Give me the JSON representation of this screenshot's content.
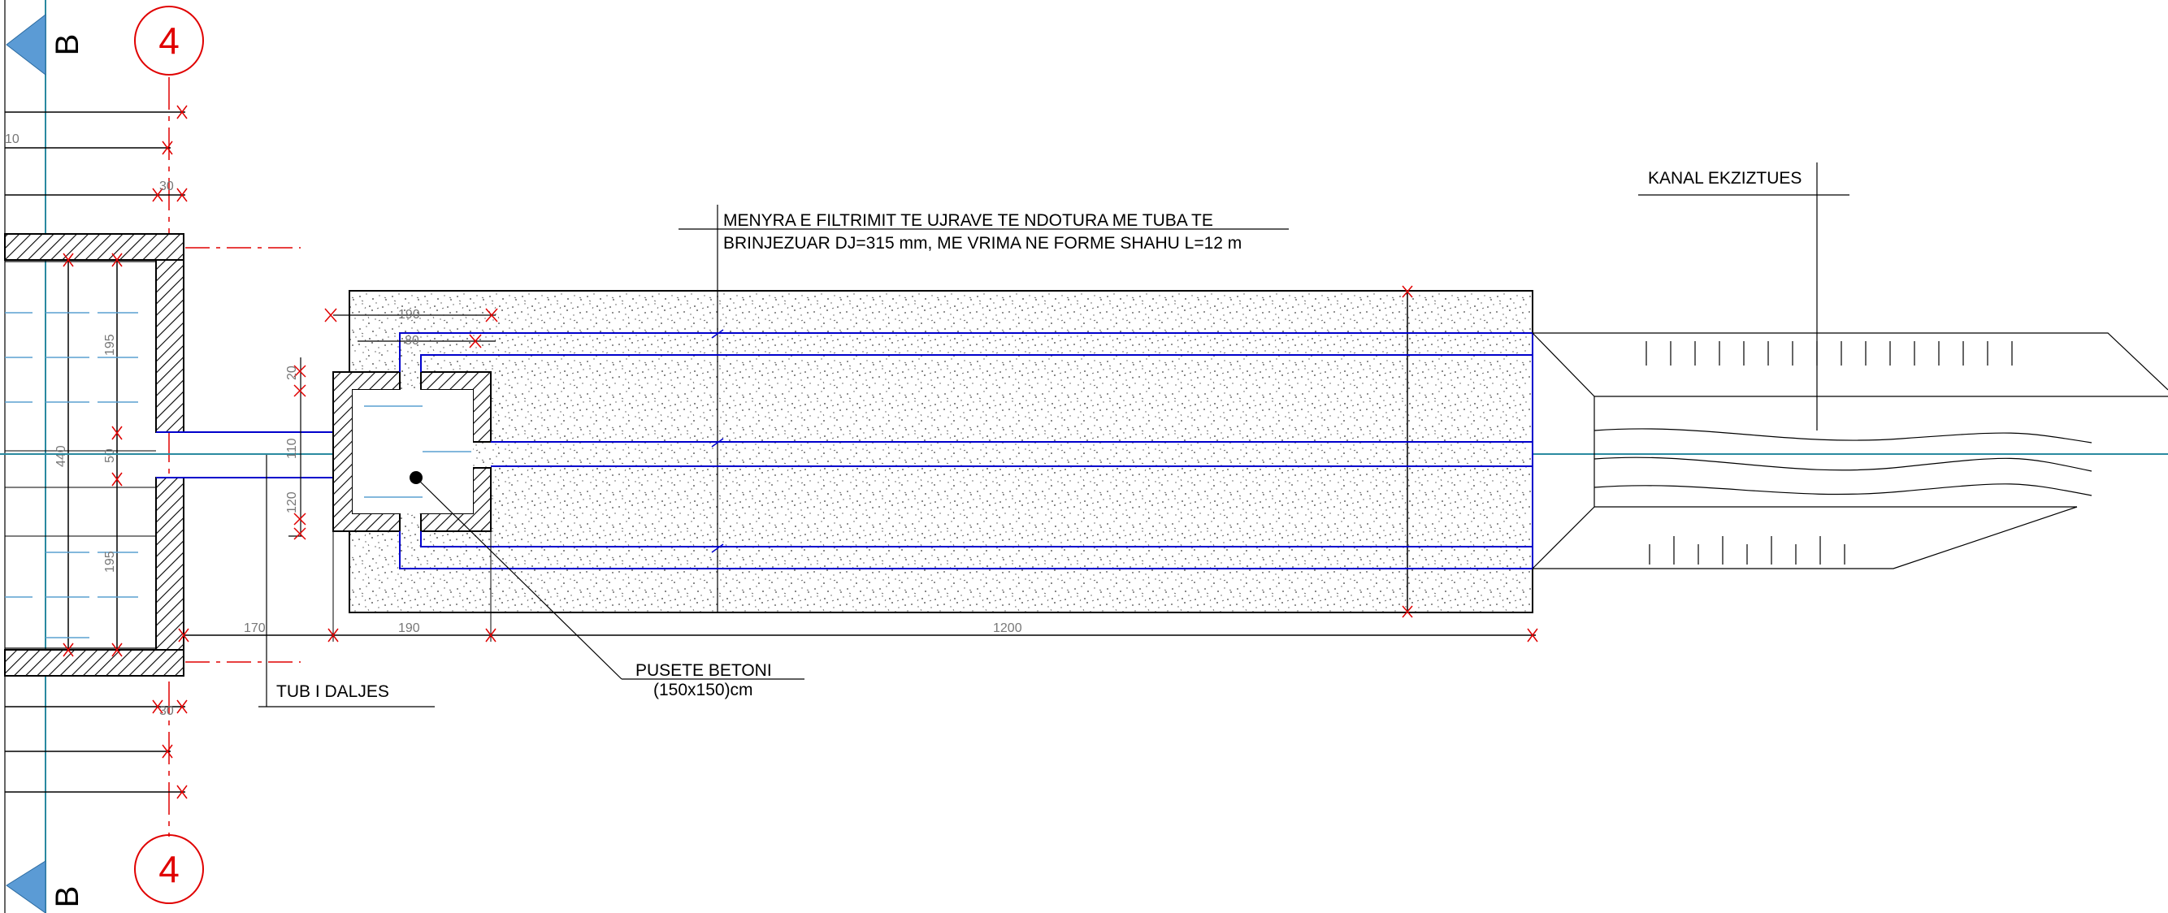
{
  "drawing": {
    "grid_axis_number": "4",
    "grid_axis_letter": "B",
    "notes": {
      "filtration_line1": "MENYRA E FILTRIMIT TE UJRAVE TE NDOTURA ME TUBA TE",
      "filtration_line2": "BRINJEZUAR  DJ=315 mm, ME VRIMA NE FORME SHAHU  L=12 m",
      "existing_canal": "KANAL EKZIZTUES",
      "manhole_line1": "PUSETE BETONI",
      "manhole_line2": "(150x150)cm",
      "outlet_pipe": "TUB I  DALJES"
    },
    "dimensions": {
      "d_170": "170",
      "d_190": "190",
      "d_1200": "1200",
      "d_190_top": "190",
      "d_80": "80",
      "d_20": "20",
      "d_110": "110",
      "d_120": "120",
      "d_195_a": "195",
      "d_195_b": "195",
      "d_50": "50",
      "d_440": "440",
      "d_30_a": "30",
      "d_30_b": "30",
      "d_10": "10"
    },
    "colors": {
      "pipe": "#0000cc",
      "grid": "#e00000",
      "axis": "#2a8aa0",
      "marker": "#5b9bd5",
      "water": "#5aa0d0"
    }
  }
}
